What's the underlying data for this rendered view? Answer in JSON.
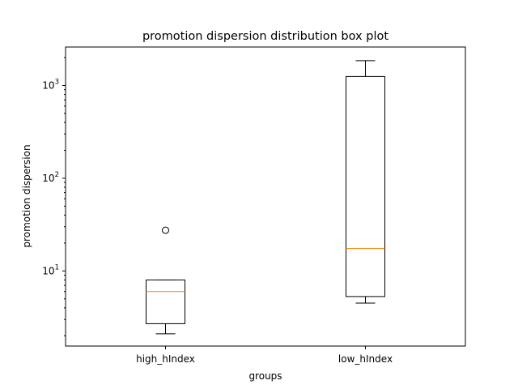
{
  "chart_data": {
    "type": "box",
    "title": "promotion dispersion distribution box plot",
    "xlabel": "groups",
    "ylabel": "promotion dispersion",
    "yscale": "log",
    "ylim": [
      1.55,
      2600
    ],
    "y_tick_labels": [
      {
        "value": 10,
        "exp": "1"
      },
      {
        "value": 100,
        "exp": "2"
      },
      {
        "value": 1000,
        "exp": "3"
      }
    ],
    "categories": [
      "high_hIndex",
      "low_hIndex"
    ],
    "boxes": [
      {
        "name": "high_hIndex",
        "whisker_low": 2.1,
        "q1": 2.7,
        "median": 6.0,
        "q3": 8.0,
        "whisker_high": 8.0,
        "outliers": [
          27.5
        ]
      },
      {
        "name": "low_hIndex",
        "whisker_low": 4.5,
        "q1": 5.3,
        "median": 17.5,
        "q3": 1250,
        "whisker_high": 1850,
        "outliers": []
      }
    ],
    "colors": {
      "box": "#000000",
      "median": "#ff7f0e"
    },
    "grid": false,
    "legend": "none"
  }
}
